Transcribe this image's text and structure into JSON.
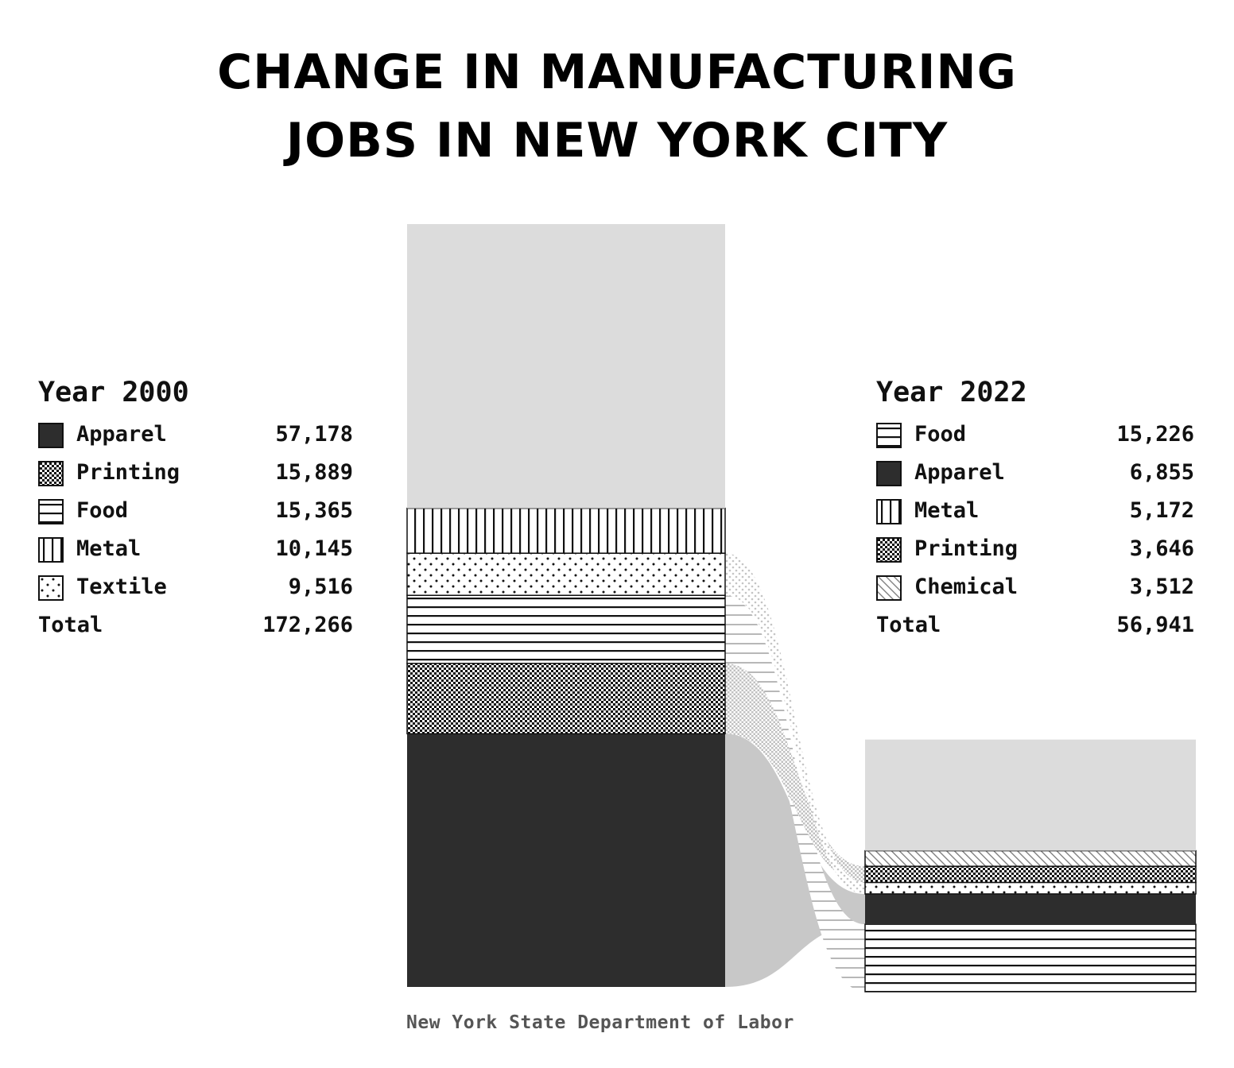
{
  "title": {
    "line1": "CHANGE IN MANUFACTURING",
    "line2": "JOBS IN NEW YORK CITY"
  },
  "source": "New York State Department of Labor",
  "colors": {
    "dark": "#2d2d2d",
    "other": "#dcdcdc",
    "flow": "#c8c8c8",
    "ink": "#111111"
  },
  "chart_data": {
    "type": "sankey",
    "left": {
      "heading": "Year 2000",
      "total_label": "Total",
      "total": "172,266",
      "total_value": 172266,
      "categories": [
        {
          "name": "Apparel",
          "value": "57,178",
          "num": 57178,
          "pattern": "solid"
        },
        {
          "name": "Printing",
          "value": "15,889",
          "num": 15889,
          "pattern": "dense"
        },
        {
          "name": "Food",
          "value": "15,365",
          "num": 15365,
          "pattern": "hlines"
        },
        {
          "name": "Metal",
          "value": "10,145",
          "num": 10145,
          "pattern": "vlines"
        },
        {
          "name": "Textile",
          "value": "9,516",
          "num": 9516,
          "pattern": "dots"
        }
      ]
    },
    "right": {
      "heading": "Year 2022",
      "total_label": "Total",
      "total": "56,941",
      "total_value": 56941,
      "categories": [
        {
          "name": "Food",
          "value": "15,226",
          "num": 15226,
          "pattern": "hlines"
        },
        {
          "name": "Apparel",
          "value": "6,855",
          "num": 6855,
          "pattern": "solid"
        },
        {
          "name": "Metal",
          "value": "5,172",
          "num": 5172,
          "pattern": "vlines"
        },
        {
          "name": "Printing",
          "value": "3,646",
          "num": 3646,
          "pattern": "dense"
        },
        {
          "name": "Chemical",
          "value": "3,512",
          "num": 3512,
          "pattern": "diag"
        }
      ]
    }
  }
}
